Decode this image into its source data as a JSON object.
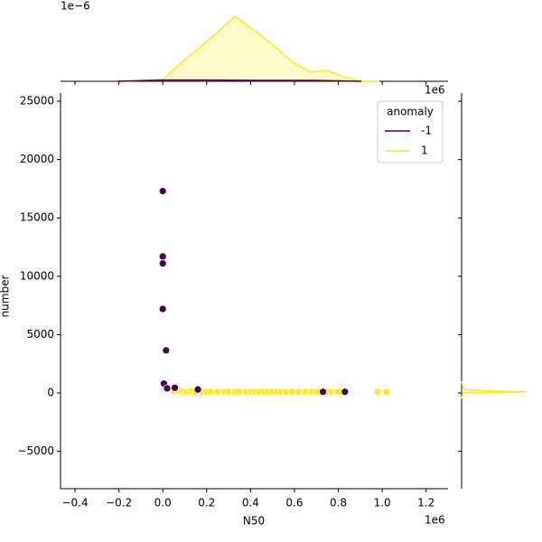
{
  "chart_data": {
    "type": "scatter",
    "x_label": "N50",
    "y_label": "number",
    "x_offset_label": "1e6",
    "xlim": [
      -466000,
      1300000
    ],
    "ylim": [
      -8200,
      25700
    ],
    "xticks": [
      {
        "value": -400000,
        "label": "−0.4"
      },
      {
        "value": -200000,
        "label": "−0.2"
      },
      {
        "value": 0,
        "label": "0.0"
      },
      {
        "value": 200000,
        "label": "0.2"
      },
      {
        "value": 400000,
        "label": "0.4"
      },
      {
        "value": 600000,
        "label": "0.6"
      },
      {
        "value": 800000,
        "label": "0.8"
      },
      {
        "value": 1000000,
        "label": "1.0"
      },
      {
        "value": 1200000,
        "label": "1.2"
      }
    ],
    "yticks": [
      {
        "value": -5000,
        "label": "−5000"
      },
      0,
      5000,
      10000,
      15000,
      20000,
      25000
    ],
    "legend_title": "anomaly",
    "legend_position": "upper right",
    "series": [
      {
        "name": "1",
        "color": "#fde725",
        "x": [
          50000,
          70000,
          90000,
          110000,
          130000,
          150000,
          180000,
          200000,
          220000,
          250000,
          280000,
          300000,
          330000,
          350000,
          380000,
          400000,
          420000,
          440000,
          460000,
          480000,
          500000,
          520000,
          540000,
          560000,
          590000,
          620000,
          650000,
          680000,
          700000,
          750000,
          770000,
          790000,
          800000,
          980000,
          1020000
        ],
        "values": [
          200,
          200,
          150,
          100,
          150,
          100,
          100,
          100,
          100,
          100,
          100,
          100,
          100,
          100,
          100,
          100,
          100,
          100,
          100,
          100,
          100,
          100,
          100,
          100,
          100,
          100,
          100,
          100,
          100,
          100,
          100,
          100,
          100,
          100,
          100
        ]
      },
      {
        "name": "-1",
        "color": "#440154",
        "x": [
          0,
          0,
          0,
          0,
          15000,
          5000,
          20000,
          55000,
          160000,
          730000,
          830000
        ],
        "values": [
          17300,
          11700,
          11100,
          7200,
          3650,
          800,
          400,
          450,
          300,
          100,
          100
        ]
      }
    ],
    "marginal_x": {
      "type": "kde",
      "offset_label": "1e−6",
      "ylim": [
        0,
        1.875e-06
      ],
      "series": [
        {
          "name": "1",
          "color": "#fde725",
          "x": [
            -206000,
            0,
            82000,
            206000,
            329000,
            453000,
            527000,
            597000,
            679000,
            749000,
            823000,
            905000,
            988000
          ],
          "values": [
            0,
            4e-08,
            4.2e-07,
            9.4e-07,
            1.5e-06,
            1.04e-06,
            7.3e-07,
            4.2e-07,
            2.1e-07,
            2.5e-07,
            1e-07,
            0,
            0
          ]
        },
        {
          "name": "-1",
          "color": "#440154",
          "x": [
            -206000,
            0,
            206000,
            453000,
            679000,
            905000
          ],
          "values": [
            0,
            3e-08,
            3e-08,
            2e-08,
            2e-08,
            0
          ]
        }
      ]
    },
    "marginal_y": {
      "type": "kde",
      "xlim": [
        0,
        0.01
      ],
      "series": [
        {
          "name": "1",
          "color": "#fde725",
          "y": [
            -500,
            0,
            60,
            100,
            140,
            300,
            1000
          ],
          "values": [
            0,
            0.0002,
            0.006,
            0.0095,
            0.006,
            0.0003,
            0
          ]
        }
      ]
    }
  }
}
